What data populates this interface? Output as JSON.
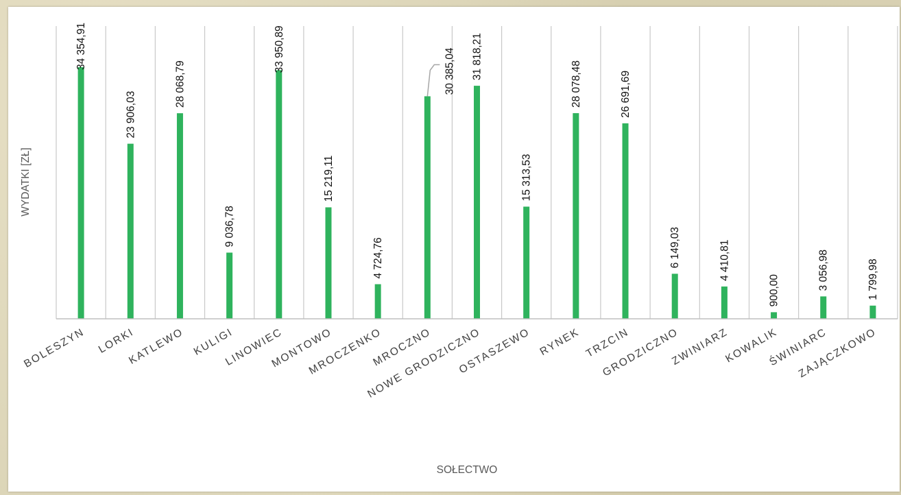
{
  "chart_data": {
    "type": "bar",
    "title": "",
    "xlabel": "SOŁECTWO",
    "ylabel": "WYDATKI [ZŁ]",
    "ylim": [
      0,
      35000
    ],
    "grid": {
      "vertical": true,
      "horizontal": false
    },
    "legend": "none",
    "colors": {
      "bar": "#2fb35d",
      "grid": "#c8c8c8",
      "axis": "#bfbfbf",
      "leader": "#a6a6a6"
    },
    "categories": [
      "BOLESZYN",
      "LORKI",
      "KATLEWO",
      "KULIGI",
      "LINOWIEC",
      "MONTOWO",
      "MROCZENKO",
      "MROCZNO",
      "NOWE GRODZICZNO",
      "OSTASZEWO",
      "RYNEK",
      "TRZCIN",
      "GRODZICZNO",
      "ZWINIARZ",
      "KOWALIK",
      "ŚWINIARC",
      "ZAJĄCZKOWO"
    ],
    "values": [
      34354.91,
      23906.03,
      28068.79,
      9036.78,
      33950.89,
      15219.11,
      4724.76,
      30385.04,
      31818.21,
      15313.53,
      28078.48,
      26691.69,
      6149.03,
      4410.81,
      900.0,
      3056.98,
      1799.98
    ],
    "data_labels": [
      "34 354,91",
      "23 906,03",
      "28 068,79",
      "9 036,78",
      "33 950,89",
      "15 219,11",
      "4 724,76",
      "30 385,04",
      "31 818,21",
      "15 313,53",
      "28 078,48",
      "26 691,69",
      "6 149,03",
      "4 410,81",
      "900,00",
      "3 056,98",
      "1 799,98"
    ]
  }
}
